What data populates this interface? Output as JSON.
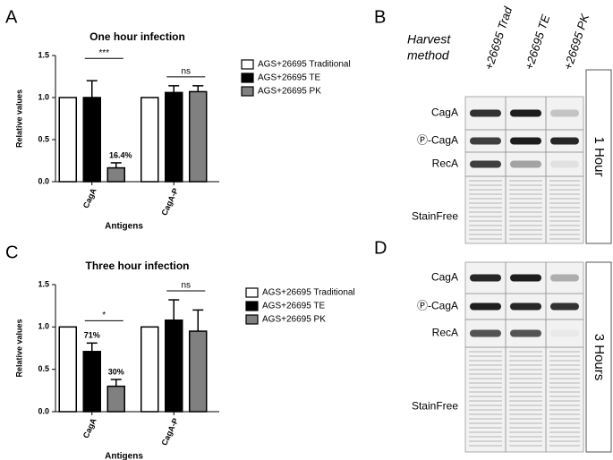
{
  "chart_data": [
    {
      "type": "bar",
      "panel": "A",
      "title": "One hour infection",
      "xlabel": "Antigens",
      "ylabel": "Relative values",
      "categories": [
        "CagA",
        "CagA-P"
      ],
      "series": [
        {
          "name": "AGS+26695 Traditional",
          "color": "#ffffff",
          "values": [
            1.0,
            1.0
          ]
        },
        {
          "name": "AGS+26695 TE",
          "color": "#000000",
          "values": [
            1.0,
            1.06
          ],
          "errors": [
            0.2,
            0.08
          ]
        },
        {
          "name": "AGS+26695 PK",
          "color": "#808080",
          "values": [
            0.164,
            1.07
          ],
          "errors": [
            0.06,
            0.07
          ],
          "value_labels": [
            "16.4%",
            null
          ]
        }
      ],
      "significance": [
        "***",
        "ns"
      ],
      "ylim": [
        0,
        1.5
      ],
      "yticks": [
        {
          "value": 0,
          "label": "0.0"
        },
        0.5,
        {
          "value": 1,
          "label": "1.0"
        },
        1.5
      ]
    },
    {
      "type": "bar",
      "panel": "C",
      "title": "Three hour infection",
      "xlabel": "Antigens",
      "ylabel": "Relative values",
      "categories": [
        "CagA",
        "CagA-P"
      ],
      "series": [
        {
          "name": "AGS+26695 Traditional",
          "color": "#ffffff",
          "values": [
            1.0,
            1.0
          ]
        },
        {
          "name": "AGS+26695 TE",
          "color": "#000000",
          "values": [
            0.71,
            1.08
          ],
          "errors": [
            0.1,
            0.24
          ],
          "value_labels": [
            "71%",
            null
          ]
        },
        {
          "name": "AGS+26695 PK",
          "color": "#808080",
          "values": [
            0.3,
            0.95
          ],
          "errors": [
            0.08,
            0.25
          ],
          "value_labels": [
            "30%",
            null
          ]
        }
      ],
      "significance": [
        "*",
        "ns"
      ],
      "ylim": [
        0,
        1.5
      ],
      "yticks": [
        {
          "value": 0,
          "label": "0.0"
        },
        0.5,
        {
          "value": 1,
          "label": "1.0"
        },
        1.5
      ]
    }
  ],
  "blots": [
    {
      "panel": "B",
      "header": [
        "Harvest",
        "method"
      ],
      "lanes": [
        "+26695 Trad",
        "+26695 TE",
        "+26695 PK"
      ],
      "rows": [
        "CagA",
        "Ⓟ-CagA",
        "RecA",
        "StainFree"
      ],
      "time": "1 Hour"
    },
    {
      "panel": "D",
      "rows": [
        "CagA",
        "Ⓟ-CagA",
        "RecA",
        "StainFree"
      ],
      "time": "3 Hours"
    }
  ]
}
